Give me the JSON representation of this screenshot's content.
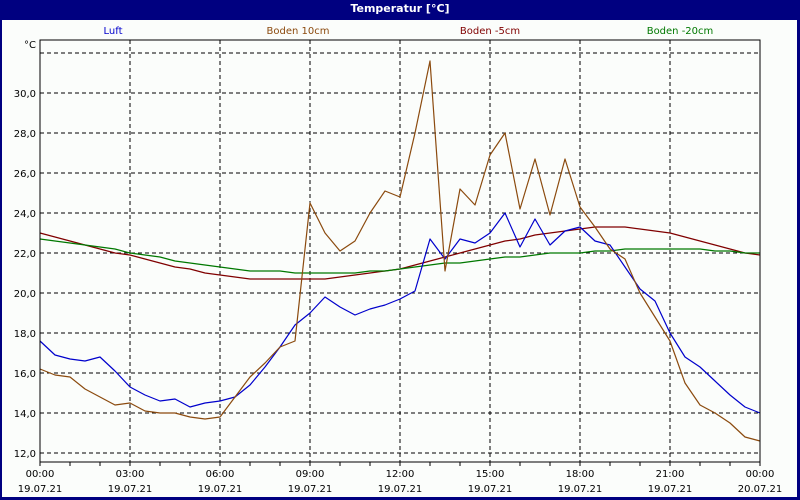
{
  "window": {
    "title": "Temperatur [°C]"
  },
  "legend": [
    {
      "label": "Luft",
      "color": "#0000cc"
    },
    {
      "label": "Boden 10cm",
      "color": "#8b4a0e"
    },
    {
      "label": "Boden -5cm",
      "color": "#800000"
    },
    {
      "label": "Boden -20cm",
      "color": "#007800"
    }
  ],
  "axis": {
    "y_unit": "°C",
    "y_ticks": [
      "30,0",
      "28,0",
      "26,0",
      "24,0",
      "22,0",
      "20,0",
      "18,0",
      "16,0",
      "14,0",
      "12,0"
    ],
    "x_ticks": [
      {
        "time": "00:00",
        "date": "19.07.21"
      },
      {
        "time": "03:00",
        "date": "19.07.21"
      },
      {
        "time": "06:00",
        "date": "19.07.21"
      },
      {
        "time": "09:00",
        "date": "19.07.21"
      },
      {
        "time": "12:00",
        "date": "19.07.21"
      },
      {
        "time": "15:00",
        "date": "19.07.21"
      },
      {
        "time": "18:00",
        "date": "19.07.21"
      },
      {
        "time": "21:00",
        "date": "19.07.21"
      },
      {
        "time": "00:00",
        "date": "20.07.21"
      }
    ]
  },
  "chart_data": {
    "type": "line",
    "title": "Temperatur [°C]",
    "xlabel": "",
    "ylabel": "°C",
    "ylim": [
      11.0,
      32.6
    ],
    "xlim_hours": [
      0,
      24
    ],
    "grid": true,
    "legend_position": "top",
    "x": [
      0,
      0.5,
      1,
      1.5,
      2,
      2.5,
      3,
      3.5,
      4,
      4.5,
      5,
      5.5,
      6,
      6.5,
      7,
      7.5,
      8,
      8.5,
      9,
      9.5,
      10,
      10.5,
      11,
      11.5,
      12,
      12.5,
      13,
      13.5,
      14,
      14.5,
      15,
      15.5,
      16,
      16.5,
      17,
      17.5,
      18,
      18.5,
      19,
      19.5,
      20,
      20.5,
      21,
      21.5,
      22,
      22.5,
      23,
      23.5,
      24
    ],
    "x_unit": "hours since 19.07.21 00:00",
    "series": [
      {
        "name": "Luft",
        "color": "#0000cc",
        "values": [
          17.6,
          16.9,
          16.7,
          16.6,
          16.8,
          16.1,
          15.3,
          14.9,
          14.6,
          14.7,
          14.3,
          14.5,
          14.6,
          14.8,
          15.4,
          16.3,
          17.3,
          18.4,
          19.0,
          19.8,
          19.3,
          18.9,
          19.2,
          19.4,
          19.7,
          20.1,
          22.7,
          21.7,
          22.7,
          22.5,
          23.0,
          24.0,
          22.3,
          23.7,
          22.4,
          23.1,
          23.3,
          22.6,
          22.4,
          21.3,
          20.2,
          19.6,
          18.0,
          16.8,
          16.3,
          15.6,
          14.9,
          14.3,
          14.0
        ]
      },
      {
        "name": "Boden 10cm",
        "color": "#8b4a0e",
        "values": [
          16.2,
          15.9,
          15.8,
          15.2,
          14.8,
          14.4,
          14.5,
          14.1,
          14.0,
          14.0,
          13.8,
          13.7,
          13.8,
          14.8,
          15.8,
          16.5,
          17.3,
          17.6,
          24.5,
          23.0,
          22.1,
          22.6,
          24.0,
          25.1,
          24.8,
          28.0,
          31.6,
          21.1,
          25.2,
          24.4,
          26.9,
          28.0,
          24.2,
          26.7,
          23.9,
          26.7,
          24.3,
          23.3,
          22.2,
          21.7,
          20.0,
          18.8,
          17.6,
          15.5,
          14.4,
          14.0,
          13.5,
          12.8,
          12.6
        ]
      },
      {
        "name": "Boden -5cm",
        "color": "#800000",
        "values": [
          23.0,
          22.8,
          22.6,
          22.4,
          22.2,
          22.0,
          21.9,
          21.7,
          21.5,
          21.3,
          21.2,
          21.0,
          20.9,
          20.8,
          20.7,
          20.7,
          20.7,
          20.7,
          20.7,
          20.7,
          20.8,
          20.9,
          21.0,
          21.1,
          21.2,
          21.4,
          21.6,
          21.8,
          22.0,
          22.2,
          22.4,
          22.6,
          22.7,
          22.9,
          23.0,
          23.1,
          23.2,
          23.3,
          23.3,
          23.3,
          23.2,
          23.1,
          23.0,
          22.8,
          22.6,
          22.4,
          22.2,
          22.0,
          21.9
        ]
      },
      {
        "name": "Boden -20cm",
        "color": "#007800",
        "values": [
          22.7,
          22.6,
          22.5,
          22.4,
          22.3,
          22.2,
          22.0,
          21.9,
          21.8,
          21.6,
          21.5,
          21.4,
          21.3,
          21.2,
          21.1,
          21.1,
          21.1,
          21.0,
          21.0,
          21.0,
          21.0,
          21.0,
          21.1,
          21.1,
          21.2,
          21.3,
          21.4,
          21.5,
          21.5,
          21.6,
          21.7,
          21.8,
          21.8,
          21.9,
          22.0,
          22.0,
          22.0,
          22.1,
          22.1,
          22.2,
          22.2,
          22.2,
          22.2,
          22.2,
          22.2,
          22.1,
          22.1,
          22.0,
          22.0
        ]
      }
    ]
  }
}
